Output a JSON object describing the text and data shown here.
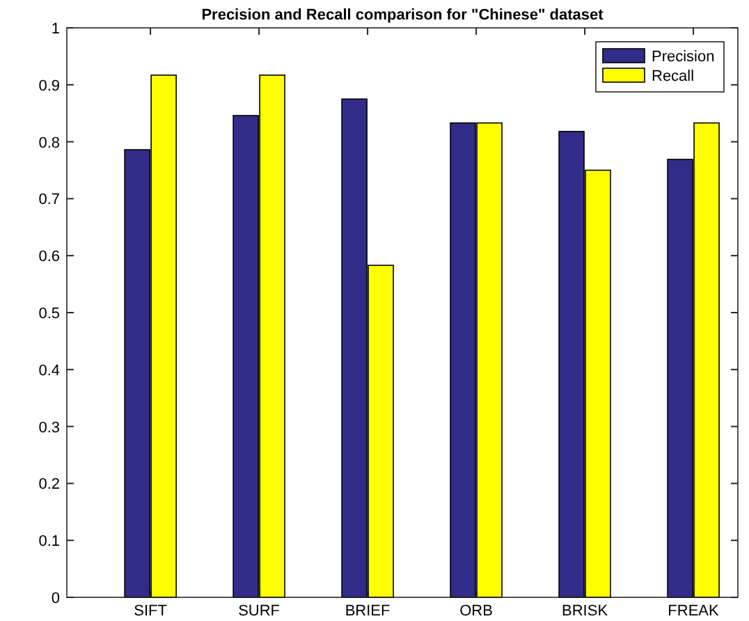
{
  "chart_data": {
    "type": "bar",
    "title": "Precision and Recall comparison for \"Chinese\" dataset",
    "categories": [
      "SIFT",
      "SURF",
      "BRIEF",
      "ORB",
      "BRISK",
      "FREAK"
    ],
    "series": [
      {
        "name": "Precision",
        "color": "#312c87",
        "values": [
          0.786,
          0.846,
          0.875,
          0.833,
          0.818,
          0.769
        ]
      },
      {
        "name": "Recall",
        "color": "#ffff00",
        "values": [
          0.917,
          0.917,
          0.583,
          0.833,
          0.75,
          0.833
        ]
      }
    ],
    "ylim": [
      0,
      1
    ],
    "yticks": [
      0,
      0.1,
      0.2,
      0.3,
      0.4,
      0.5,
      0.6,
      0.7,
      0.8,
      0.9,
      1
    ],
    "legend": "top right",
    "grid": false
  }
}
